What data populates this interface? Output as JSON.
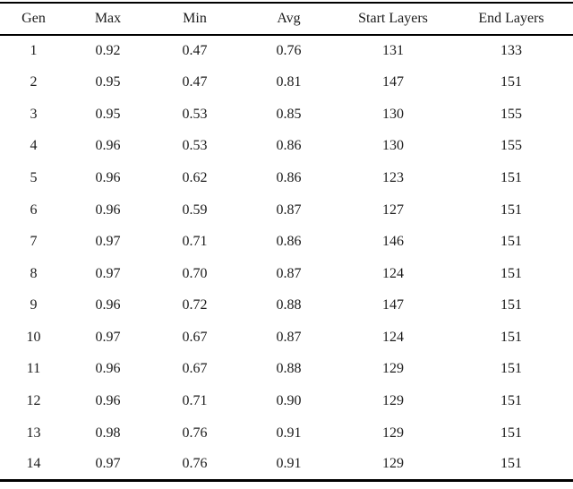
{
  "colors": {
    "background": "#ffffff",
    "text": "#1b1b1b",
    "rule": "#000000"
  },
  "table": {
    "columns": [
      "Gen",
      "Max",
      "Min",
      "Avg",
      "Start Layers",
      "End Layers"
    ],
    "rows": [
      [
        "1",
        "0.92",
        "0.47",
        "0.76",
        "131",
        "133"
      ],
      [
        "2",
        "0.95",
        "0.47",
        "0.81",
        "147",
        "151"
      ],
      [
        "3",
        "0.95",
        "0.53",
        "0.85",
        "130",
        "155"
      ],
      [
        "4",
        "0.96",
        "0.53",
        "0.86",
        "130",
        "155"
      ],
      [
        "5",
        "0.96",
        "0.62",
        "0.86",
        "123",
        "151"
      ],
      [
        "6",
        "0.96",
        "0.59",
        "0.87",
        "127",
        "151"
      ],
      [
        "7",
        "0.97",
        "0.71",
        "0.86",
        "146",
        "151"
      ],
      [
        "8",
        "0.97",
        "0.70",
        "0.87",
        "124",
        "151"
      ],
      [
        "9",
        "0.96",
        "0.72",
        "0.88",
        "147",
        "151"
      ],
      [
        "10",
        "0.97",
        "0.67",
        "0.87",
        "124",
        "151"
      ],
      [
        "11",
        "0.96",
        "0.67",
        "0.88",
        "129",
        "151"
      ],
      [
        "12",
        "0.96",
        "0.71",
        "0.90",
        "129",
        "151"
      ],
      [
        "13",
        "0.98",
        "0.76",
        "0.91",
        "129",
        "151"
      ],
      [
        "14",
        "0.97",
        "0.76",
        "0.91",
        "129",
        "151"
      ]
    ]
  }
}
